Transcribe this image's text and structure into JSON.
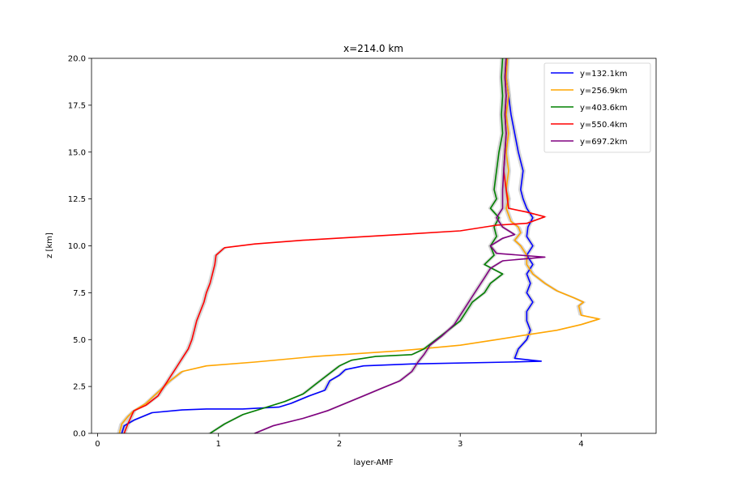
{
  "chart_data": {
    "type": "line",
    "title": "x=214.0 km",
    "xlabel": "layer-AMF",
    "ylabel": "z [km]",
    "xlim": [
      -0.05,
      4.62
    ],
    "ylim": [
      0.0,
      20.0
    ],
    "xticks": [
      0,
      1,
      2,
      3,
      4
    ],
    "yticks": [
      0.0,
      2.5,
      5.0,
      7.5,
      10.0,
      12.5,
      15.0,
      17.5,
      20.0
    ],
    "xtick_labels": [
      "0",
      "1",
      "2",
      "3",
      "4"
    ],
    "ytick_labels": [
      "0.0",
      "2.5",
      "5.0",
      "7.5",
      "10.0",
      "12.5",
      "15.0",
      "17.5",
      "20.0"
    ],
    "grid": false,
    "legend_position": "top-right",
    "uncertainty_band_color": "#bbbbbb",
    "series": [
      {
        "name": "y=132.1km",
        "color": "#0000ff",
        "points": [
          [
            0.2,
            0.0
          ],
          [
            0.22,
            0.4
          ],
          [
            0.3,
            0.7
          ],
          [
            0.45,
            1.1
          ],
          [
            0.7,
            1.25
          ],
          [
            0.9,
            1.3
          ],
          [
            1.2,
            1.3
          ],
          [
            1.5,
            1.4
          ],
          [
            1.6,
            1.6
          ],
          [
            1.75,
            2.0
          ],
          [
            1.88,
            2.3
          ],
          [
            1.92,
            2.8
          ],
          [
            2.0,
            3.1
          ],
          [
            2.05,
            3.4
          ],
          [
            2.2,
            3.6
          ],
          [
            2.6,
            3.7
          ],
          [
            3.4,
            3.8
          ],
          [
            3.67,
            3.85
          ],
          [
            3.45,
            4.0
          ],
          [
            3.48,
            4.5
          ],
          [
            3.55,
            5.0
          ],
          [
            3.58,
            5.5
          ],
          [
            3.55,
            6.0
          ],
          [
            3.55,
            6.5
          ],
          [
            3.6,
            7.0
          ],
          [
            3.55,
            7.5
          ],
          [
            3.58,
            8.0
          ],
          [
            3.55,
            8.5
          ],
          [
            3.6,
            9.0
          ],
          [
            3.55,
            9.5
          ],
          [
            3.6,
            10.0
          ],
          [
            3.55,
            10.5
          ],
          [
            3.56,
            11.0
          ],
          [
            3.6,
            11.5
          ],
          [
            3.55,
            12.0
          ],
          [
            3.52,
            12.5
          ],
          [
            3.5,
            13.0
          ],
          [
            3.52,
            14.0
          ],
          [
            3.48,
            15.0
          ],
          [
            3.45,
            16.0
          ],
          [
            3.42,
            17.0
          ],
          [
            3.4,
            18.0
          ],
          [
            3.38,
            19.0
          ],
          [
            3.38,
            20.0
          ]
        ]
      },
      {
        "name": "y=256.9km",
        "color": "#ffa500",
        "points": [
          [
            0.18,
            0.0
          ],
          [
            0.2,
            0.5
          ],
          [
            0.25,
            0.9
          ],
          [
            0.3,
            1.2
          ],
          [
            0.4,
            1.6
          ],
          [
            0.5,
            2.2
          ],
          [
            0.6,
            2.8
          ],
          [
            0.7,
            3.3
          ],
          [
            0.9,
            3.6
          ],
          [
            1.3,
            3.8
          ],
          [
            1.8,
            4.1
          ],
          [
            2.5,
            4.4
          ],
          [
            3.0,
            4.7
          ],
          [
            3.3,
            5.0
          ],
          [
            3.5,
            5.2
          ],
          [
            3.8,
            5.5
          ],
          [
            4.0,
            5.8
          ],
          [
            4.15,
            6.1
          ],
          [
            4.0,
            6.3
          ],
          [
            3.98,
            6.8
          ],
          [
            4.02,
            7.0
          ],
          [
            3.95,
            7.2
          ],
          [
            3.8,
            7.6
          ],
          [
            3.7,
            8.0
          ],
          [
            3.6,
            8.5
          ],
          [
            3.55,
            9.0
          ],
          [
            3.55,
            9.5
          ],
          [
            3.5,
            10.0
          ],
          [
            3.45,
            10.3
          ],
          [
            3.5,
            10.7
          ],
          [
            3.48,
            11.0
          ],
          [
            3.42,
            11.3
          ],
          [
            3.38,
            12.0
          ],
          [
            3.4,
            12.5
          ],
          [
            3.38,
            13.0
          ],
          [
            3.4,
            14.0
          ],
          [
            3.38,
            15.0
          ],
          [
            3.4,
            16.0
          ],
          [
            3.38,
            17.0
          ],
          [
            3.4,
            18.0
          ],
          [
            3.38,
            19.0
          ],
          [
            3.39,
            20.0
          ]
        ]
      },
      {
        "name": "y=403.6km",
        "color": "#008000",
        "points": [
          [
            0.93,
            0.0
          ],
          [
            1.05,
            0.5
          ],
          [
            1.2,
            1.0
          ],
          [
            1.4,
            1.4
          ],
          [
            1.55,
            1.7
          ],
          [
            1.7,
            2.1
          ],
          [
            1.8,
            2.6
          ],
          [
            1.9,
            3.1
          ],
          [
            2.0,
            3.6
          ],
          [
            2.1,
            3.9
          ],
          [
            2.3,
            4.1
          ],
          [
            2.6,
            4.2
          ],
          [
            2.7,
            4.5
          ],
          [
            2.8,
            5.0
          ],
          [
            2.9,
            5.5
          ],
          [
            3.0,
            6.0
          ],
          [
            3.05,
            6.5
          ],
          [
            3.1,
            7.0
          ],
          [
            3.2,
            7.5
          ],
          [
            3.25,
            8.0
          ],
          [
            3.35,
            8.5
          ],
          [
            3.2,
            9.0
          ],
          [
            3.28,
            9.5
          ],
          [
            3.25,
            10.0
          ],
          [
            3.3,
            10.5
          ],
          [
            3.28,
            11.0
          ],
          [
            3.32,
            11.5
          ],
          [
            3.25,
            12.0
          ],
          [
            3.3,
            12.5
          ],
          [
            3.28,
            13.0
          ],
          [
            3.3,
            14.0
          ],
          [
            3.32,
            15.0
          ],
          [
            3.35,
            16.0
          ],
          [
            3.34,
            17.0
          ],
          [
            3.35,
            18.0
          ],
          [
            3.34,
            19.0
          ],
          [
            3.35,
            20.0
          ]
        ]
      },
      {
        "name": "y=550.4km",
        "color": "#ff0000",
        "points": [
          [
            0.22,
            0.0
          ],
          [
            0.25,
            0.5
          ],
          [
            0.3,
            1.2
          ],
          [
            0.4,
            1.5
          ],
          [
            0.5,
            2.0
          ],
          [
            0.55,
            2.5
          ],
          [
            0.6,
            3.0
          ],
          [
            0.65,
            3.5
          ],
          [
            0.7,
            4.0
          ],
          [
            0.75,
            4.5
          ],
          [
            0.78,
            5.0
          ],
          [
            0.8,
            5.5
          ],
          [
            0.82,
            6.0
          ],
          [
            0.85,
            6.5
          ],
          [
            0.88,
            7.0
          ],
          [
            0.9,
            7.5
          ],
          [
            0.93,
            8.0
          ],
          [
            0.95,
            8.5
          ],
          [
            0.97,
            9.0
          ],
          [
            0.98,
            9.5
          ],
          [
            1.05,
            9.9
          ],
          [
            1.3,
            10.1
          ],
          [
            1.7,
            10.3
          ],
          [
            2.5,
            10.6
          ],
          [
            3.0,
            10.8
          ],
          [
            3.3,
            11.1
          ],
          [
            3.55,
            11.2
          ],
          [
            3.7,
            11.55
          ],
          [
            3.55,
            11.8
          ],
          [
            3.4,
            12.0
          ],
          [
            3.38,
            13.0
          ],
          [
            3.36,
            14.0
          ],
          [
            3.37,
            15.0
          ],
          [
            3.38,
            16.0
          ],
          [
            3.37,
            17.0
          ],
          [
            3.38,
            18.0
          ],
          [
            3.37,
            19.0
          ],
          [
            3.38,
            20.0
          ]
        ]
      },
      {
        "name": "y=697.2km",
        "color": "#800080",
        "points": [
          [
            1.3,
            0.0
          ],
          [
            1.45,
            0.4
          ],
          [
            1.7,
            0.8
          ],
          [
            1.9,
            1.2
          ],
          [
            2.05,
            1.6
          ],
          [
            2.2,
            2.0
          ],
          [
            2.35,
            2.4
          ],
          [
            2.5,
            2.8
          ],
          [
            2.6,
            3.3
          ],
          [
            2.65,
            3.8
          ],
          [
            2.7,
            4.2
          ],
          [
            2.75,
            4.7
          ],
          [
            2.85,
            5.2
          ],
          [
            2.95,
            5.8
          ],
          [
            3.0,
            6.3
          ],
          [
            3.05,
            6.8
          ],
          [
            3.1,
            7.3
          ],
          [
            3.15,
            7.8
          ],
          [
            3.2,
            8.3
          ],
          [
            3.25,
            8.8
          ],
          [
            3.35,
            9.2
          ],
          [
            3.7,
            9.4
          ],
          [
            3.3,
            9.6
          ],
          [
            3.25,
            10.0
          ],
          [
            3.35,
            10.4
          ],
          [
            3.45,
            10.6
          ],
          [
            3.35,
            11.0
          ],
          [
            3.3,
            11.5
          ],
          [
            3.35,
            12.0
          ],
          [
            3.35,
            13.0
          ],
          [
            3.36,
            14.0
          ],
          [
            3.37,
            15.0
          ],
          [
            3.38,
            16.0
          ],
          [
            3.37,
            17.0
          ],
          [
            3.38,
            18.0
          ],
          [
            3.37,
            19.0
          ],
          [
            3.38,
            20.0
          ]
        ]
      }
    ]
  }
}
